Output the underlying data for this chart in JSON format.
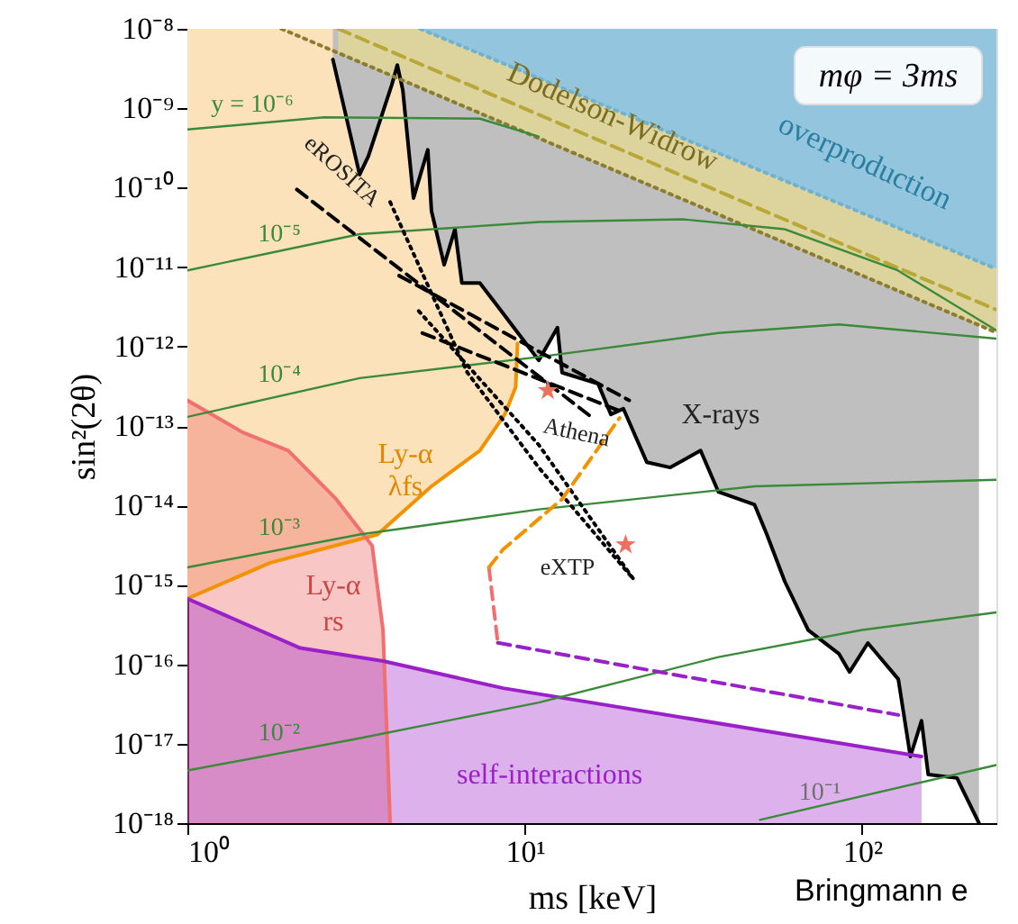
{
  "chart_data": {
    "type": "line",
    "xlabel": "ms  [keV]",
    "ylabel": "sin²(2θ)",
    "log": "xy",
    "grid": false,
    "xlim": [
      1,
      250
    ],
    "xticks": [
      {
        "value": 1,
        "label": "10⁰"
      },
      {
        "value": 10,
        "label": "10¹"
      },
      {
        "value": 100,
        "label": "10²"
      }
    ],
    "ylim": [
      1e-18,
      1e-08
    ],
    "yticks": [
      {
        "value": 1e-18,
        "label": "10⁻¹⁸"
      },
      {
        "value": 1e-17,
        "label": "10⁻¹⁷"
      },
      {
        "value": 1e-16,
        "label": "10⁻¹⁶"
      },
      {
        "value": 1e-15,
        "label": "10⁻¹⁵"
      },
      {
        "value": 1e-14,
        "label": "10⁻¹⁴"
      },
      {
        "value": 1e-13,
        "label": "10⁻¹³"
      },
      {
        "value": 1e-12,
        "label": "10⁻¹²"
      },
      {
        "value": 1e-11,
        "label": "10⁻¹¹"
      },
      {
        "value": 1e-10,
        "label": "10⁻¹⁰"
      },
      {
        "value": 1e-09,
        "label": "10⁻⁹"
      },
      {
        "value": 1e-08,
        "label": "10⁻⁸"
      }
    ],
    "series": [
      {
        "type": "line",
        "color": "#f39200",
        "line_style": "solid",
        "x": [
          1,
          1.76,
          3.66,
          5.29,
          7.36,
          8.73,
          9.4,
          9.52
        ],
        "values": [
          6.7e-16,
          1.9e-15,
          4.3e-15,
          1.74e-14,
          4.9e-14,
          1.4e-13,
          3.1e-13,
          1.1e-12
        ],
        "lower": [
          6.7e-16,
          1.9e-15,
          4.3e-15,
          1.74e-14,
          4.9e-14,
          1.4e-13,
          3.1e-13,
          1.1e-12
        ],
        "upper": [
          1e-08,
          1e-08,
          1e-08,
          1e-08,
          1e-08,
          1e-08,
          1e-08,
          1e-08
        ]
      },
      {
        "type": "line",
        "color": "#000000",
        "line_style": "solid",
        "x": [
          2.7,
          3.24,
          3.44,
          4.04,
          4.19,
          4.35,
          4.68,
          5.16,
          5.29,
          5.77,
          6.21,
          6.51,
          7.36,
          8.32,
          9.75,
          11.0,
          12.5,
          12.9,
          16.5,
          18.0,
          19.6,
          23.0,
          27.0,
          33.2,
          37.5,
          48.0,
          52.2,
          59.0,
          69.2,
          85.3,
          91.8,
          104,
          128,
          139,
          150,
          157,
          191,
          222
        ],
        "values": [
          4.1e-09,
          1.46e-10,
          2.5e-10,
          2e-09,
          3.5e-09,
          1.7e-09,
          7.4e-11,
          3e-10,
          5.1e-11,
          1.07e-11,
          3e-11,
          6.3e-12,
          6.3e-12,
          3.2e-12,
          1.32e-12,
          6.7e-13,
          1.73e-12,
          4.7e-13,
          3.4e-13,
          1.4e-13,
          1.65e-13,
          3.5e-14,
          3e-14,
          4.9e-14,
          1.48e-14,
          1.02e-14,
          4.3e-15,
          1.1e-15,
          2.7e-16,
          1.36e-16,
          8e-17,
          1.85e-16,
          6.5e-17,
          6.9e-18,
          1.94e-17,
          4.1e-18,
          3.7e-18,
          1e-18
        ],
        "lower": [
          4.1e-09,
          1.46e-10,
          2.5e-10,
          2e-09,
          3.5e-09,
          1.7e-09,
          7.4e-11,
          3e-10,
          5.1e-11,
          1.07e-11,
          3e-11,
          6.3e-12,
          6.3e-12,
          3.2e-12,
          1.32e-12,
          6.7e-13,
          1.73e-12,
          4.7e-13,
          3.4e-13,
          1.4e-13,
          1.65e-13,
          3.5e-14,
          3e-14,
          4.9e-14,
          1.48e-14,
          1.02e-14,
          4.3e-15,
          1.1e-15,
          2.7e-16,
          1.36e-16,
          8e-17,
          1.85e-16,
          6.5e-17,
          6.9e-18,
          1.94e-17,
          4.1e-18,
          3.7e-18,
          1e-18
        ],
        "upper": [
          1e-08,
          1e-08,
          1e-08,
          1e-08,
          1e-08,
          1e-08,
          1e-08,
          1e-08,
          1e-08,
          1e-08,
          1e-08,
          1e-08,
          1e-08,
          1e-08,
          1e-08,
          1e-08,
          1e-08,
          1e-08,
          1e-08,
          1e-08,
          1e-08,
          1e-08,
          1e-08,
          1e-08,
          1e-08,
          1e-08,
          1e-08,
          1e-08,
          1e-08,
          1e-08,
          1e-08,
          1e-08,
          1e-08,
          1e-08,
          1e-08,
          1e-08,
          1e-08,
          1e-08
        ]
      },
      {
        "type": "line",
        "color": "#b8a838",
        "line_style": "dashed",
        "x": [
          2.8,
          4.9,
          250
        ],
        "values": [
          1e-08,
          3.6e-09,
          2.9e-12
        ],
        "lower": [
          5e-09,
          1.8e-09,
          1.5e-12
        ],
        "upper": [
          1e-08,
          1e-08,
          9.5e-12
        ]
      },
      {
        "type": "line",
        "color": "#6fb3d3",
        "line_style": "dotted",
        "x": [
          4.9,
          250
        ],
        "values": [
          1e-08,
          9.5e-12
        ],
        "lower": [
          1e-08,
          9.5e-12
        ],
        "upper": [
          1e-08,
          1e-08
        ]
      },
      {
        "type": "line",
        "color": "#f07070",
        "line_style": "solid",
        "x": [
          1,
          1.46,
          1.99,
          2.76,
          3.53,
          3.8,
          3.89,
          3.99
        ],
        "values": [
          2.1e-13,
          8.3e-14,
          4.9e-14,
          1.2e-14,
          3.1e-15,
          2.7e-16,
          1.96e-17,
          1e-18
        ],
        "lower": [
          1e-18,
          1e-18,
          1e-18,
          1e-18,
          1e-18,
          1e-18,
          1e-18,
          1e-18
        ],
        "upper": [
          2.1e-13,
          8.3e-14,
          4.9e-14,
          1.2e-14,
          3.1e-15,
          2.7e-16,
          1.96e-17,
          1e-18
        ]
      },
      {
        "type": "line",
        "color": "#9a20c8",
        "line_style": "solid",
        "x": [
          1,
          2.16,
          3.8,
          8.63,
          150
        ],
        "values": [
          6.7e-16,
          1.6e-16,
          1.1e-16,
          5e-17,
          6.9e-18
        ],
        "lower": [
          1e-18,
          1e-18,
          1e-18,
          1e-18,
          1e-18
        ],
        "upper": [
          6.7e-16,
          1.6e-16,
          1.1e-16,
          5e-17,
          6.9e-18
        ]
      },
      {
        "type": "line",
        "color": "#8c7d2e",
        "line_style": "dotted",
        "x": [
          1.9,
          250
        ],
        "values": [
          1e-08,
          1.5e-12
        ]
      },
      {
        "type": "line",
        "color": "#3a8a3a",
        "line_style": "solid",
        "x": [
          1,
          2.54,
          7.36,
          11.0
        ],
        "values": [
          5.4e-10,
          7.7e-10,
          7.4e-10,
          4.4e-10
        ]
      },
      {
        "type": "line",
        "color": "#3a8a3a",
        "line_style": "solid",
        "x": [
          1,
          3.24,
          11.0,
          29.4,
          59.0,
          127.5,
          250
        ],
        "values": [
          9.1e-12,
          2.6e-11,
          3.7e-11,
          4e-11,
          3e-11,
          9.1e-12,
          1.6e-12
        ]
      },
      {
        "type": "line",
        "color": "#3a8a3a",
        "line_style": "solid",
        "x": [
          1,
          3.24,
          11.0,
          37.5,
          85.3,
          250
        ],
        "values": [
          1.3e-13,
          4e-13,
          7.4e-13,
          1.48e-12,
          1.9e-12,
          1.26e-12
        ]
      },
      {
        "type": "line",
        "color": "#3a8a3a",
        "line_style": "solid",
        "x": [
          1,
          3.24,
          11.0,
          48,
          250
        ],
        "values": [
          1.66e-15,
          4.3e-15,
          8.9e-15,
          1.74e-14,
          2.1e-14
        ]
      },
      {
        "type": "line",
        "color": "#3a8a3a",
        "line_style": "solid",
        "x": [
          1,
          3.24,
          11.0,
          37.5,
          100,
          250
        ],
        "values": [
          4.6e-18,
          1.17e-17,
          3.3e-17,
          1.23e-16,
          2.7e-16,
          4.5e-16
        ]
      },
      {
        "type": "line",
        "color": "#3a8a3a",
        "line_style": "solid",
        "x": [
          49.8,
          250
        ],
        "values": [
          1.1e-18,
          5.4e-18
        ]
      },
      {
        "type": "line",
        "color": "#000000",
        "line_style": "dashed",
        "x": [
          2.11,
          15.9
        ],
        "values": [
          9.5e-11,
          1.26e-13
        ]
      },
      {
        "type": "line",
        "color": "#000000",
        "line_style": "dashed",
        "x": [
          4.24,
          20.4
        ],
        "values": [
          7.8e-12,
          2.1e-13
        ]
      },
      {
        "type": "line",
        "color": "#000000",
        "line_style": "dashed",
        "x": [
          4.97,
          19.1
        ],
        "values": [
          1.48e-12,
          1.55e-13
        ]
      },
      {
        "type": "line",
        "color": "#000000",
        "line_style": "dotted",
        "x": [
          3.99,
          6.76,
          11.0,
          21.1
        ],
        "values": [
          6.6e-11,
          4.7e-13,
          3e-14,
          1.15e-15
        ]
      },
      {
        "type": "line",
        "color": "#000000",
        "line_style": "dotted",
        "x": [
          4.85,
          11.0,
          21.1
        ],
        "values": [
          2.8e-12,
          5.8e-14,
          1.15e-15
        ]
      },
      {
        "type": "line",
        "color": "#f07070",
        "line_style": "dashed",
        "x": [
          7.83,
          8.32
        ],
        "values": [
          1.66e-15,
          1.86e-16
        ]
      },
      {
        "type": "line",
        "color": "#f39200",
        "line_style": "dashed",
        "x": [
          7.83,
          8.63,
          12.9,
          19.1
        ],
        "values": [
          1.66e-15,
          2.8e-15,
          1.2e-14,
          1.26e-13
        ]
      },
      {
        "type": "line",
        "color": "#9a20c8",
        "line_style": "dashed",
        "x": [
          8.32,
          128
        ],
        "values": [
          1.86e-16,
          2.3e-17
        ]
      },
      {
        "type": "scatter",
        "color": "#f07060",
        "marker": "star",
        "x": [
          11.7,
          19.9
        ],
        "values": [
          2.8e-13,
          3.2e-15
        ]
      }
    ],
    "annotations": [
      "mφ = 3ms",
      "y = 10⁻⁶",
      "10⁻⁵",
      "10⁻⁴",
      "10⁻³",
      "10⁻²",
      "10⁻¹",
      "eROSITA",
      "Athena",
      "eXTP",
      "X-rays",
      "Ly-α",
      "λfs",
      "Ly-α",
      "rs",
      "self-interactions",
      "overproduction",
      "Dodelson-Widrow",
      "Bringmann e"
    ]
  }
}
